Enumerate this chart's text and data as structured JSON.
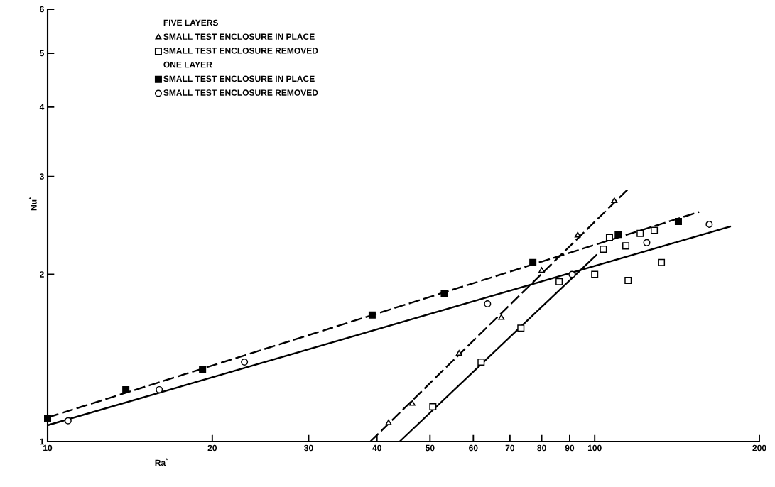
{
  "chart_data": {
    "type": "scatter",
    "xlabel": "Ra$^{*}$",
    "ylabel": "Nu$^{*}$",
    "log": "xy",
    "xlim": [
      10,
      200
    ],
    "ylim": [
      1,
      6
    ],
    "xticks": [
      10,
      20,
      30,
      40,
      50,
      60,
      70,
      80,
      90,
      100,
      200
    ],
    "yticks": [
      1,
      2,
      3,
      4,
      5,
      6
    ],
    "grid": false,
    "legend": "top left",
    "annotations": [
      "FIVE LAYERS",
      "ONE LAYER"
    ],
    "series": [
      {
        "name": "SMALL TEST ENCLOSURE IN PLACE",
        "marker": "triangle",
        "x": [
          42.0,
          46.4,
          56.5,
          67.5,
          80.0,
          93.1,
          108.6
        ],
        "values": [
          1.08,
          1.17,
          1.44,
          1.67,
          2.03,
          2.35,
          2.71
        ]
      },
      {
        "name": "SMALL TEST ENCLOSURE REMOVED",
        "marker": "square",
        "x": [
          50.6,
          62.0,
          73.3,
          86.1,
          100,
          103.7,
          106.4,
          114.0,
          115.1,
          121.1,
          128.5,
          132.4
        ],
        "values": [
          1.155,
          1.39,
          1.6,
          1.94,
          2.0,
          2.22,
          2.33,
          2.25,
          1.95,
          2.37,
          2.4,
          2.1
        ]
      },
      {
        "name": "SMALL TEST ENCLOSURE IN PLACE",
        "marker": "square",
        "color": "#000000",
        "x": [
          10,
          13.9,
          19.2,
          39.2,
          53.1,
          77.1,
          110.4,
          142.2
        ],
        "values": [
          1.1,
          1.24,
          1.35,
          1.69,
          1.85,
          2.1,
          2.36,
          2.49
        ]
      },
      {
        "name": "SMALL TEST ENCLOSURE REMOVED",
        "marker": "circle",
        "x": [
          10.9,
          16.0,
          22.9,
          63.7,
          90.9,
          124.5,
          161.9
        ],
        "values": [
          1.09,
          1.24,
          1.39,
          1.77,
          2.0,
          2.28,
          2.46
        ]
      },
      {
        "type": "line",
        "line_style": "dashed",
        "color": "#000000",
        "x": [
          38.9,
          114.8
        ],
        "values": [
          1.0,
          2.84
        ]
      },
      {
        "type": "line",
        "line_style": "solid",
        "color": "#000000",
        "x": [
          44.0,
          100.9
        ],
        "values": [
          1.0,
          2.17
        ]
      },
      {
        "type": "line",
        "line_style": "dashed",
        "color": "#000000",
        "x": [
          10,
          155.2
        ],
        "values": [
          1.105,
          2.59
        ]
      },
      {
        "type": "line",
        "line_style": "solid",
        "color": "#000000",
        "x": [
          10,
          177.4
        ],
        "values": [
          1.07,
          2.44
        ]
      }
    ]
  }
}
